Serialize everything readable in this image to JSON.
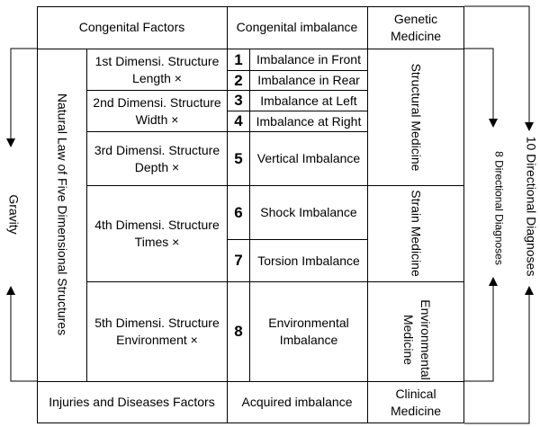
{
  "header": {
    "congenital_factors": "Congenital Factors",
    "congenital_imbalance": "Congenital imbalance",
    "genetic_medicine": [
      "Genetic",
      "Medicine"
    ]
  },
  "footer": {
    "injuries_factors": "Injuries and Diseases Factors",
    "acquired_imbalance": "Acquired imbalance",
    "clinical_medicine": [
      "Clinical",
      "Medicine"
    ]
  },
  "left_label": "Natural Law of Five Dimensional Structures",
  "gravity": "Gravity",
  "structures": [
    [
      "1st Dimensi. Structure",
      "Length ×"
    ],
    [
      "2nd Dimensi. Structure",
      "Width ×"
    ],
    [
      "3rd Dimensi. Structure",
      "Depth ×"
    ],
    [
      "4th Dimensi. Structure",
      "Times ×"
    ],
    [
      "5th Dimensi. Structure",
      "Environment ×"
    ]
  ],
  "imbalances": [
    {
      "num": "1",
      "label": "Imbalance in Front"
    },
    {
      "num": "2",
      "label": "Imbalance in Rear"
    },
    {
      "num": "3",
      "label": "Imbalance at Left"
    },
    {
      "num": "4",
      "label": "Imbalance at Right"
    },
    {
      "num": "5",
      "label": "Vertical Imbalance"
    },
    {
      "num": "6",
      "label": "Shock Imbalance"
    },
    {
      "num": "7",
      "label": "Torsion Imbalance"
    },
    {
      "num": "8",
      "label": "Environmental Imbalance"
    }
  ],
  "medicine": {
    "structural": "Structural Medicine",
    "strain": "Strain Medicine",
    "environmental": [
      "Environmental",
      "Medicine"
    ]
  },
  "diagnoses": {
    "eight": "8 Directional Diagnoses",
    "ten": "10 Directional Diagnoses"
  }
}
